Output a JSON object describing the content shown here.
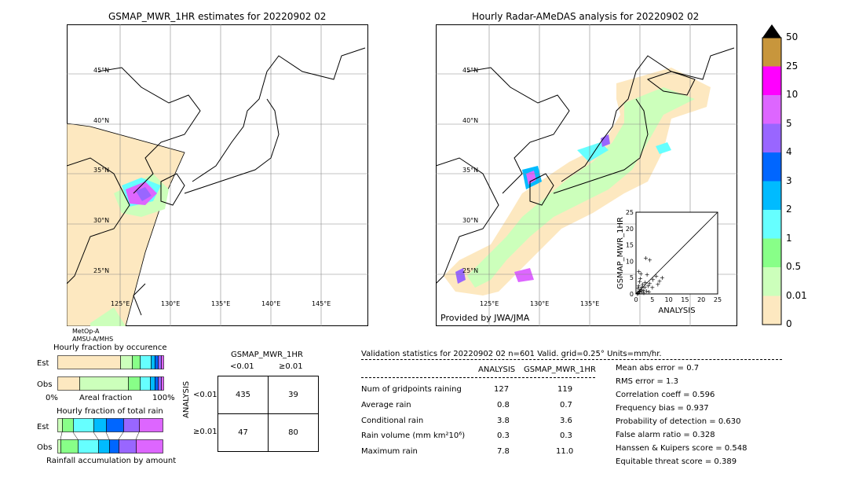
{
  "left_map": {
    "title": "GSMAP_MWR_1HR estimates for 20220902 02",
    "lat_labels": [
      "45°N",
      "40°N",
      "35°N",
      "30°N",
      "25°N"
    ],
    "lon_labels": [
      "125°E",
      "130°E",
      "135°E",
      "140°E",
      "145°E"
    ],
    "sensor_lines": [
      "MetOp-A",
      "AMSU-A/MHS"
    ]
  },
  "right_map": {
    "title": "Hourly Radar-AMeDAS analysis for 20220902 02",
    "lat_labels": [
      "45°N",
      "40°N",
      "35°N",
      "30°N",
      "25°N"
    ],
    "lon_labels": [
      "125°E",
      "130°E",
      "135°E"
    ],
    "credit": "Provided by JWA/JMA"
  },
  "colorbar": {
    "labels": [
      "50",
      "25",
      "10",
      "5",
      "4",
      "3",
      "2",
      "1",
      "0.5",
      "0.01",
      "0"
    ],
    "colors": [
      "#c8963c",
      "#ff00ff",
      "#dd66ff",
      "#9966ff",
      "#0066ff",
      "#00bbff",
      "#66ffff",
      "#88ff88",
      "#ccffbb",
      "#fde8c0"
    ]
  },
  "scatter": {
    "xlabel": "ANALYSIS",
    "ylabel": "GSMAP_MWR_1HR",
    "ticks": [
      "0",
      "5",
      "10",
      "15",
      "20",
      "25"
    ]
  },
  "occurrence": {
    "title": "Hourly fraction by occurence",
    "row1": "Est",
    "row2": "Obs",
    "axis_left": "0%",
    "axis_mid": "Areal fraction",
    "axis_right": "100%"
  },
  "total_rain": {
    "title": "Hourly fraction of total rain",
    "row1": "Est",
    "row2": "Obs",
    "axis_label": "Rainfall accumulation by amount"
  },
  "contingency": {
    "title": "GSMAP_MWR_1HR",
    "col1": "<0.01",
    "col2": "≥0.01",
    "row_axis": "ANALYSIS",
    "row1": "<0.01",
    "row2": "≥0.01",
    "cells": [
      "435",
      "39",
      "47",
      "80"
    ]
  },
  "validation": {
    "header": "Validation statistics for 20220902 02  n=601 Valid. grid=0.25° Units=mm/hr.",
    "col_analysis": "ANALYSIS",
    "col_gsmap": "GSMAP_MWR_1HR",
    "rows": [
      {
        "label": "Num of gridpoints raining",
        "a": "127",
        "g": "119"
      },
      {
        "label": "Average rain",
        "a": "0.8",
        "g": "0.7"
      },
      {
        "label": "Conditional rain",
        "a": "3.8",
        "g": "3.6"
      },
      {
        "label": "Rain volume (mm km²10⁶)",
        "a": "0.3",
        "g": "0.3"
      },
      {
        "label": "Maximum rain",
        "a": "7.8",
        "g": "11.0"
      }
    ],
    "scores": [
      "Mean abs error =    0.7",
      "RMS error =    1.3",
      "Correlation coeff =  0.596",
      "Frequency bias =  0.937",
      "Probability of detection =  0.630",
      "False alarm ratio =  0.328",
      "Hanssen & Kuipers score =  0.548",
      "Equitable threat score =  0.389"
    ]
  },
  "chart_data": {
    "type": "scatter",
    "title": "",
    "xlabel": "ANALYSIS",
    "ylabel": "GSMAP_MWR_1HR",
    "xlim": [
      0,
      25
    ],
    "ylim": [
      0,
      25
    ],
    "points": [
      [
        0.3,
        0.5
      ],
      [
        0.5,
        0.2
      ],
      [
        0.8,
        1.0
      ],
      [
        1.0,
        0.6
      ],
      [
        1.2,
        1.5
      ],
      [
        1.5,
        0.8
      ],
      [
        2.0,
        1.2
      ],
      [
        0.4,
        1.8
      ],
      [
        2.5,
        2.0
      ],
      [
        3.0,
        1.0
      ],
      [
        0.6,
        2.5
      ],
      [
        1.8,
        3.0
      ],
      [
        3.5,
        2.5
      ],
      [
        4.0,
        3.2
      ],
      [
        0.9,
        3.8
      ],
      [
        2.2,
        0.4
      ],
      [
        5.0,
        4.5
      ],
      [
        1.1,
        4.8
      ],
      [
        6.0,
        5.5
      ],
      [
        3.2,
        6.0
      ],
      [
        7.0,
        4.0
      ],
      [
        2.8,
        11.0
      ],
      [
        4.0,
        10.5
      ],
      [
        0.2,
        0.1
      ],
      [
        1.6,
        2.2
      ],
      [
        2.6,
        3.6
      ],
      [
        3.8,
        0.7
      ],
      [
        4.8,
        2.0
      ],
      [
        6.5,
        3.0
      ],
      [
        7.8,
        5.0
      ],
      [
        1.3,
        6.2
      ],
      [
        0.7,
        7.0
      ]
    ]
  }
}
